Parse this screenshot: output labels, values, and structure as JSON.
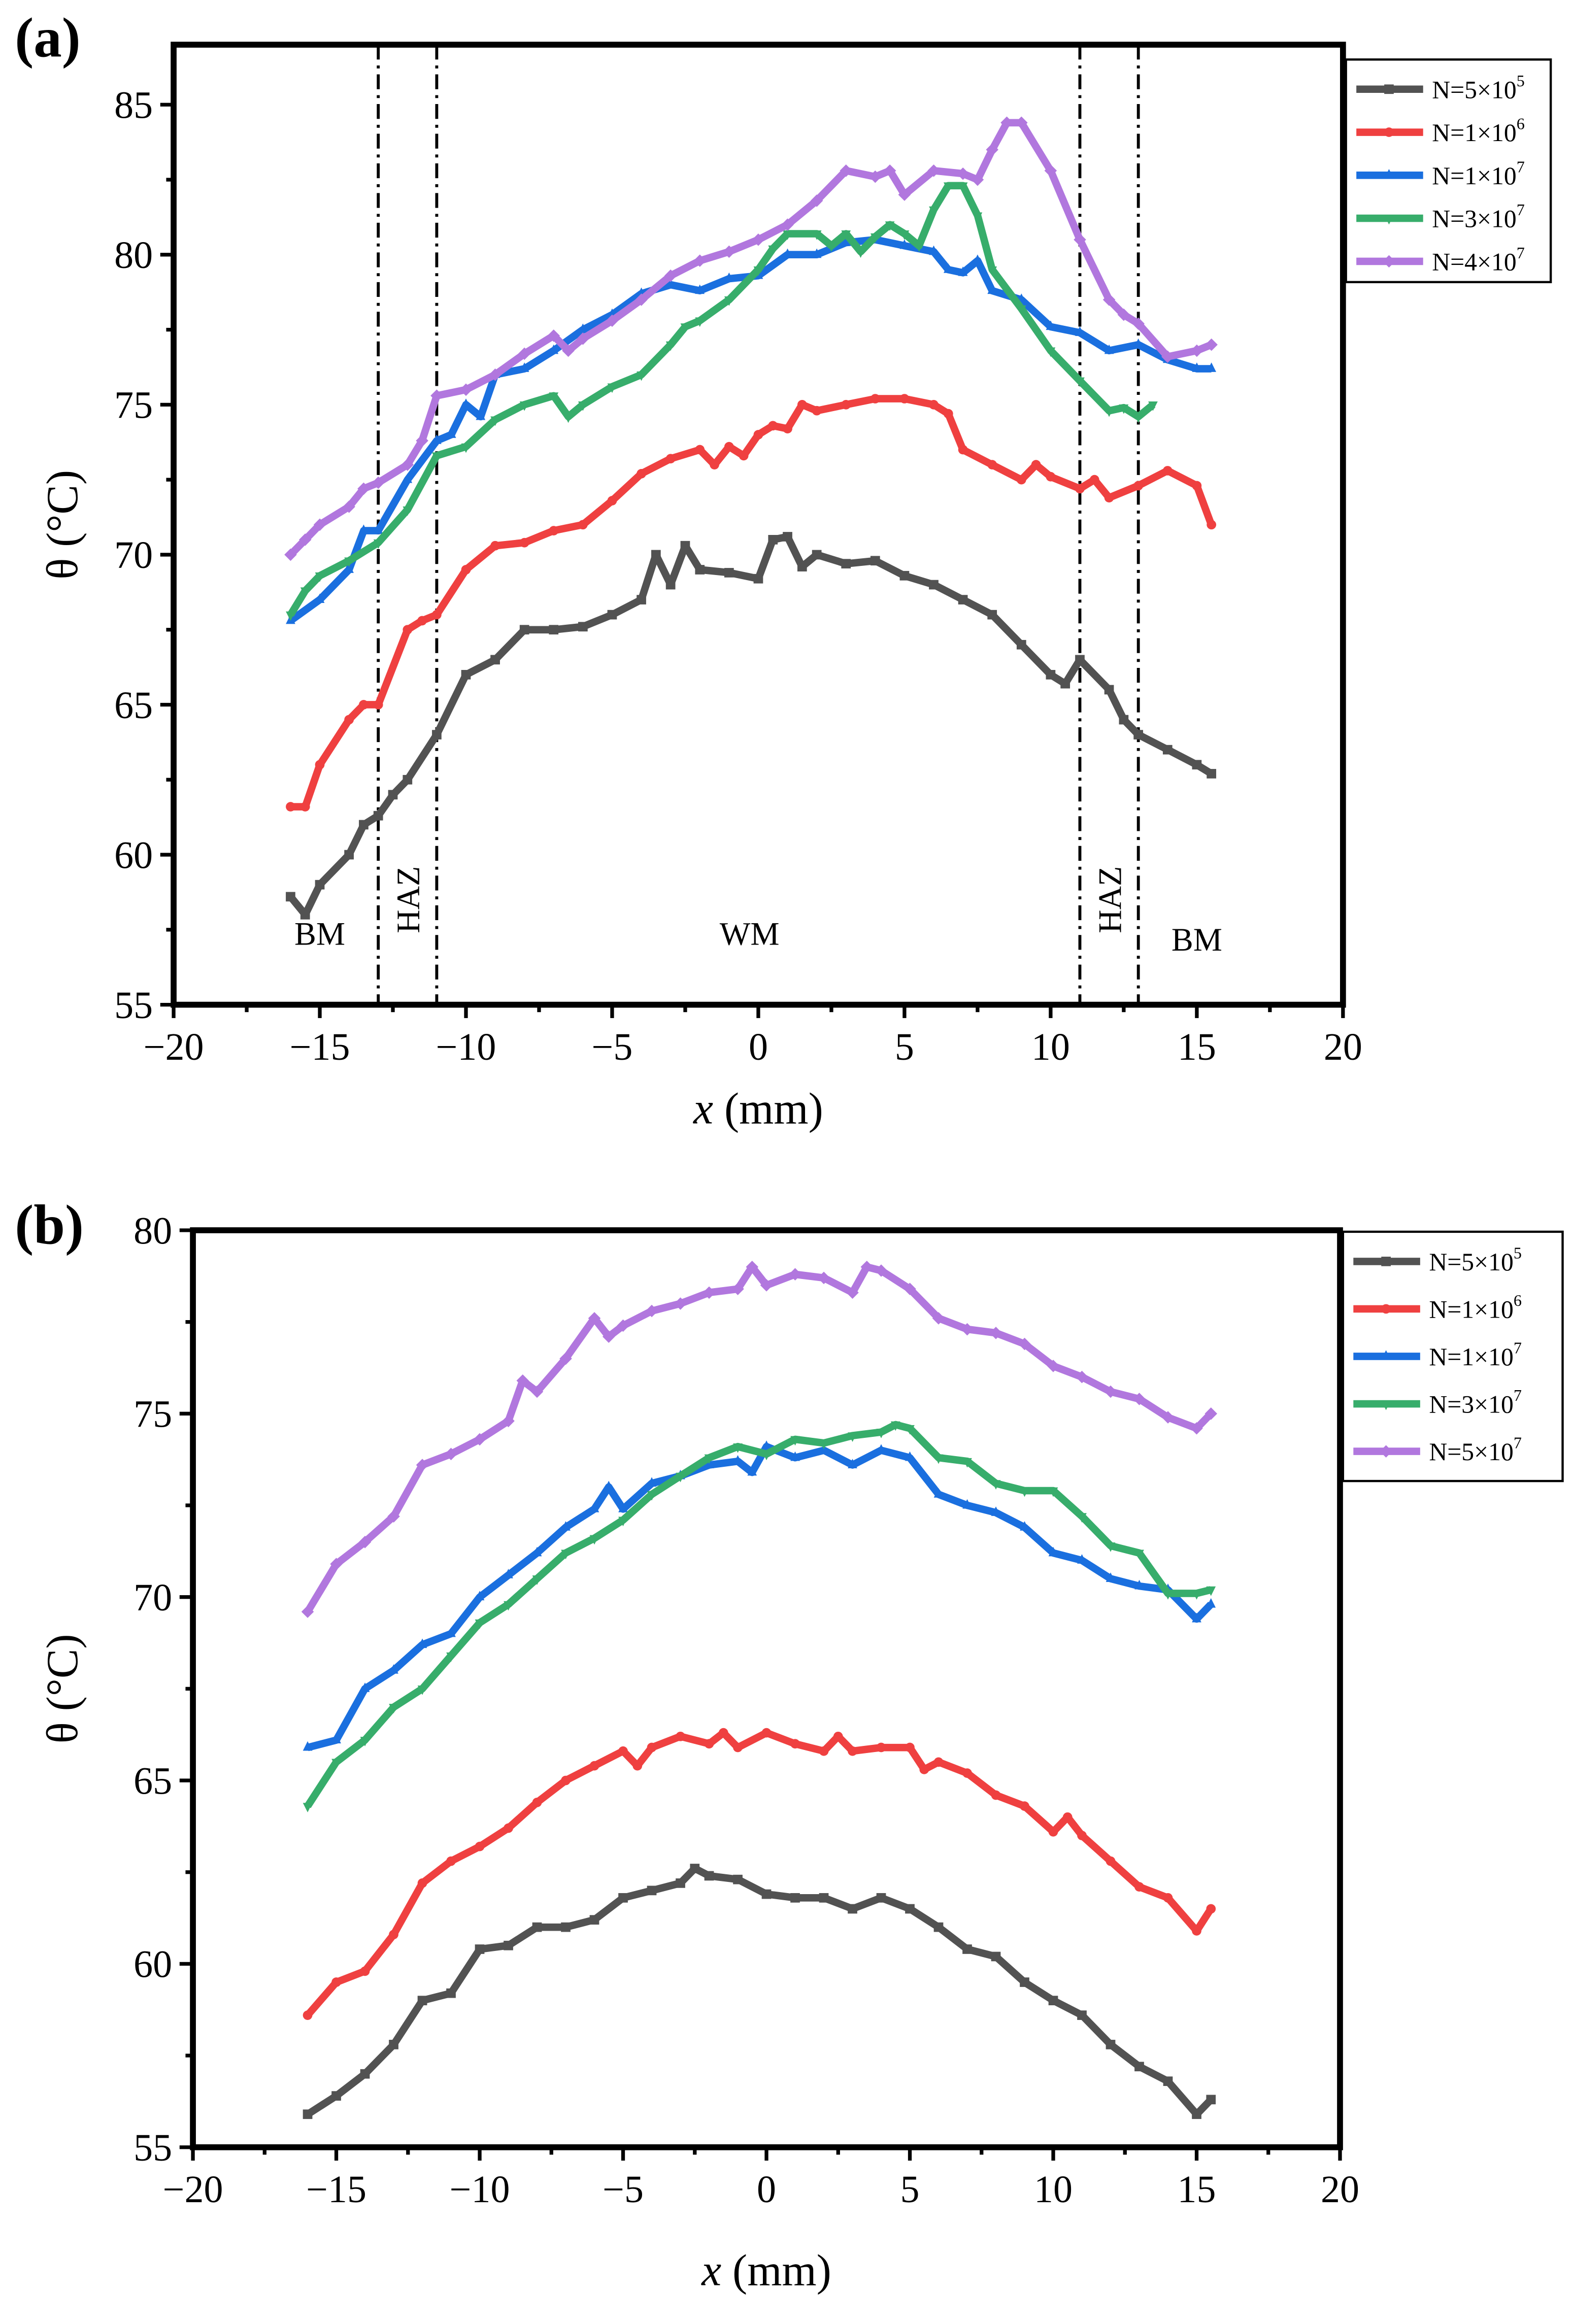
{
  "chart_data": [
    {
      "type": "line",
      "panel_label": "(a)",
      "xlabel_var": "x",
      "xlabel_unit": " (mm)",
      "ylabel": "θ (°C)",
      "xlim": [
        -20,
        20
      ],
      "ylim": [
        55,
        87
      ],
      "xticks": [
        -20,
        -15,
        -10,
        -5,
        0,
        5,
        10,
        15,
        20
      ],
      "yticks": [
        55,
        60,
        65,
        70,
        75,
        80,
        85
      ],
      "xtick_labels": [
        "−20",
        "−15",
        "−10",
        "−5",
        "0",
        "5",
        "10",
        "15",
        "20"
      ],
      "ytick_labels": [
        "55",
        "60",
        "65",
        "70",
        "75",
        "80",
        "85"
      ],
      "legend_position": "outside-top-right",
      "zone_boundaries": [
        -13,
        -11,
        11,
        13
      ],
      "annotations": [
        {
          "text": "BM",
          "x": -15,
          "y": 57,
          "rotated": false
        },
        {
          "text": "HAZ",
          "x": -12,
          "y": 58.5,
          "rotated": true
        },
        {
          "text": "WM",
          "x": -0.3,
          "y": 57,
          "rotated": false
        },
        {
          "text": "HAZ",
          "x": 12,
          "y": 58.5,
          "rotated": true
        },
        {
          "text": "BM",
          "x": 15,
          "y": 56.8,
          "rotated": false
        }
      ],
      "series": [
        {
          "name": "N=5×10^5",
          "label_base": "N=5×10",
          "label_exp": "5",
          "color": "#525252",
          "marker": "square",
          "x": [
            -16,
            -15.5,
            -15,
            -14,
            -13.5,
            -13,
            -12.5,
            -12,
            -11,
            -10,
            -9,
            -8,
            -7,
            -6,
            -5,
            -4,
            -3.5,
            -3,
            -2.5,
            -2,
            -1,
            0,
            0.5,
            1,
            1.5,
            2,
            3,
            4,
            5,
            6,
            7,
            8,
            9,
            10,
            10.5,
            11,
            12,
            12.5,
            13,
            14,
            15,
            15.5
          ],
          "y": [
            58.6,
            58,
            59,
            60,
            61,
            61.3,
            62,
            62.5,
            64,
            66,
            66.5,
            67.5,
            67.5,
            67.6,
            68,
            68.5,
            70,
            69,
            70.3,
            69.5,
            69.4,
            69.2,
            70.5,
            70.6,
            69.6,
            70,
            69.7,
            69.8,
            69.3,
            69,
            68.5,
            68,
            67,
            66,
            65.7,
            66.5,
            65.5,
            64.5,
            64,
            63.5,
            63,
            62.7
          ]
        },
        {
          "name": "N=1×10^6",
          "label_base": "N=1×10",
          "label_exp": "6",
          "color": "#ef4040",
          "marker": "circle",
          "x": [
            -16,
            -15.5,
            -15,
            -14,
            -13.5,
            -13,
            -12,
            -11.5,
            -11,
            -10,
            -9,
            -8,
            -7,
            -6,
            -5,
            -4,
            -3,
            -2,
            -1.5,
            -1,
            -0.5,
            0,
            0.5,
            1,
            1.5,
            2,
            3,
            4,
            5,
            6,
            6.5,
            7,
            8,
            9,
            9.5,
            10,
            11,
            11.5,
            12,
            13,
            14,
            15,
            15.5
          ],
          "y": [
            61.6,
            61.6,
            63,
            64.5,
            65,
            65,
            67.5,
            67.8,
            68,
            69.5,
            70.3,
            70.4,
            70.8,
            71,
            71.8,
            72.7,
            73.2,
            73.5,
            73,
            73.6,
            73.3,
            74,
            74.3,
            74.2,
            75,
            74.8,
            75,
            75.2,
            75.2,
            75,
            74.7,
            73.5,
            73,
            72.5,
            73,
            72.6,
            72.2,
            72.5,
            71.9,
            72.3,
            72.8,
            72.3,
            71
          ]
        },
        {
          "name": "N=1×10^7",
          "label_base": "N=1×10",
          "label_exp": "7",
          "color": "#1a6fdf",
          "marker": "triangle-up",
          "x": [
            -16,
            -15,
            -14,
            -13.5,
            -13,
            -12,
            -11,
            -10.5,
            -10,
            -9.5,
            -9,
            -8,
            -7,
            -6,
            -5,
            -4,
            -3,
            -2,
            -1,
            0,
            1,
            2,
            3,
            4,
            5,
            6,
            6.5,
            7,
            7.5,
            8,
            9,
            10,
            11,
            12,
            13,
            14,
            15,
            15.5
          ],
          "y": [
            67.8,
            68.5,
            69.5,
            70.8,
            70.8,
            72.5,
            73.8,
            74,
            75,
            74.6,
            76,
            76.2,
            76.8,
            77.5,
            78,
            78.7,
            79,
            78.8,
            79.2,
            79.3,
            80,
            80,
            80.4,
            80.5,
            80.3,
            80.1,
            79.5,
            79.4,
            79.8,
            78.8,
            78.5,
            77.6,
            77.4,
            76.8,
            77,
            76.5,
            76.2,
            76.2
          ]
        },
        {
          "name": "N=3×10^7",
          "label_base": "N=3×10",
          "label_exp": "7",
          "color": "#37ad6b",
          "marker": "triangle-down",
          "x": [
            -16,
            -15.5,
            -15,
            -14,
            -13,
            -12,
            -11,
            -10,
            -9,
            -8,
            -7,
            -6.5,
            -6,
            -5,
            -4,
            -3,
            -2.5,
            -2,
            -1,
            0,
            0.5,
            1,
            2,
            2.5,
            3,
            3.5,
            4,
            4.5,
            5,
            5.5,
            6,
            6.5,
            7,
            7.5,
            8,
            9,
            10,
            11,
            12,
            12.5,
            13,
            13.5
          ],
          "y": [
            68,
            68.8,
            69.3,
            69.8,
            70.4,
            71.5,
            73.3,
            73.6,
            74.5,
            75,
            75.3,
            74.6,
            75,
            75.6,
            76,
            77,
            77.6,
            77.8,
            78.5,
            79.5,
            80.2,
            80.7,
            80.7,
            80.3,
            80.7,
            80.1,
            80.6,
            81,
            80.7,
            80.3,
            81.5,
            82.3,
            82.3,
            81.3,
            79.5,
            78.2,
            76.8,
            75.8,
            74.8,
            74.9,
            74.6,
            75
          ]
        },
        {
          "name": "N=4×10^7",
          "label_base": "N=4×10",
          "label_exp": "7",
          "color": "#b177de",
          "marker": "diamond",
          "x": [
            -16,
            -15.5,
            -15,
            -14,
            -13.5,
            -13,
            -12,
            -11.5,
            -11,
            -10,
            -9,
            -8,
            -7,
            -6.5,
            -6,
            -5,
            -4,
            -3,
            -2,
            -1,
            0,
            1,
            2,
            3,
            4,
            4.5,
            5,
            6,
            7,
            7.5,
            8,
            8.5,
            9,
            10,
            11,
            12,
            12.5,
            13,
            14,
            15,
            15.5
          ],
          "y": [
            70,
            70.5,
            71,
            71.6,
            72.2,
            72.4,
            73,
            73.8,
            75.3,
            75.5,
            76,
            76.7,
            77.3,
            76.8,
            77.2,
            77.8,
            78.5,
            79.3,
            79.8,
            80.1,
            80.5,
            81,
            81.8,
            82.8,
            82.6,
            82.8,
            82,
            82.8,
            82.7,
            82.5,
            83.5,
            84.4,
            84.4,
            82.8,
            80.5,
            78.5,
            78,
            77.7,
            76.6,
            76.8,
            77
          ]
        }
      ]
    },
    {
      "type": "line",
      "panel_label": "(b)",
      "xlabel_var": "x",
      "xlabel_unit": " (mm)",
      "ylabel": "θ (°C)",
      "xlim": [
        -20,
        20
      ],
      "ylim": [
        55,
        80
      ],
      "xticks": [
        -20,
        -15,
        -10,
        -5,
        0,
        5,
        10,
        15,
        20
      ],
      "yticks": [
        55,
        60,
        65,
        70,
        75,
        80
      ],
      "xtick_labels": [
        "−20",
        "−15",
        "−10",
        "−5",
        "0",
        "5",
        "10",
        "15",
        "20"
      ],
      "ytick_labels": [
        "55",
        "60",
        "65",
        "70",
        "75",
        "80"
      ],
      "legend_position": "outside-top-right",
      "series": [
        {
          "name": "N=5×10^5",
          "label_base": "N=5×10",
          "label_exp": "5",
          "color": "#525252",
          "marker": "square",
          "x": [
            -16,
            -15,
            -14,
            -13,
            -12,
            -11,
            -10,
            -9,
            -8,
            -7,
            -6,
            -5,
            -4,
            -3,
            -2.5,
            -2,
            -1,
            0,
            1,
            2,
            3,
            4,
            5,
            6,
            7,
            8,
            9,
            10,
            11,
            12,
            13,
            14,
            15,
            15.5
          ],
          "y": [
            55.9,
            56.4,
            57,
            57.8,
            59,
            59.2,
            60.4,
            60.5,
            61,
            61,
            61.2,
            61.8,
            62,
            62.2,
            62.6,
            62.4,
            62.3,
            61.9,
            61.8,
            61.8,
            61.5,
            61.8,
            61.5,
            61,
            60.4,
            60.2,
            59.5,
            59,
            58.6,
            57.8,
            57.2,
            56.8,
            55.9,
            56.3
          ]
        },
        {
          "name": "N=1×10^6",
          "label_base": "N=1×10",
          "label_exp": "6",
          "color": "#ef4040",
          "marker": "circle",
          "x": [
            -16,
            -15,
            -14,
            -13,
            -12,
            -11,
            -10,
            -9,
            -8,
            -7,
            -6,
            -5,
            -4.5,
            -4,
            -3,
            -2,
            -1.5,
            -1,
            0,
            1,
            2,
            2.5,
            3,
            4,
            5,
            5.5,
            6,
            7,
            8,
            9,
            10,
            10.5,
            11,
            12,
            13,
            14,
            15,
            15.5
          ],
          "y": [
            58.6,
            59.5,
            59.8,
            60.8,
            62.2,
            62.8,
            63.2,
            63.7,
            64.4,
            65,
            65.4,
            65.8,
            65.4,
            65.9,
            66.2,
            66,
            66.3,
            65.9,
            66.3,
            66,
            65.8,
            66.2,
            65.8,
            65.9,
            65.9,
            65.3,
            65.5,
            65.2,
            64.6,
            64.3,
            63.6,
            64,
            63.5,
            62.8,
            62.1,
            61.8,
            60.9,
            61.5
          ]
        },
        {
          "name": "N=1×10^7",
          "label_base": "N=1×10",
          "label_exp": "7",
          "color": "#1a6fdf",
          "marker": "triangle-up",
          "x": [
            -16,
            -15,
            -14,
            -13,
            -12,
            -11,
            -10,
            -9,
            -8,
            -7,
            -6,
            -5.5,
            -5,
            -4,
            -3,
            -2,
            -1,
            -0.5,
            0,
            1,
            2,
            3,
            4,
            5,
            6,
            7,
            8,
            9,
            10,
            11,
            12,
            13,
            14,
            15,
            15.5
          ],
          "y": [
            65.9,
            66.1,
            67.5,
            68,
            68.7,
            69,
            70,
            70.6,
            71.2,
            71.9,
            72.4,
            73,
            72.4,
            73.1,
            73.3,
            73.6,
            73.7,
            73.4,
            74.1,
            73.8,
            74,
            73.6,
            74,
            73.8,
            72.8,
            72.5,
            72.3,
            71.9,
            71.2,
            71,
            70.5,
            70.3,
            70.2,
            69.4,
            69.8
          ]
        },
        {
          "name": "N=3×10^7",
          "label_base": "N=3×10",
          "label_exp": "7",
          "color": "#37ad6b",
          "marker": "triangle-down",
          "x": [
            -16,
            -15,
            -14,
            -13,
            -12,
            -11,
            -10,
            -9,
            -8,
            -7,
            -6,
            -5,
            -4,
            -3,
            -2,
            -1,
            0,
            1,
            2,
            3,
            4,
            4.5,
            5,
            6,
            7,
            8,
            9,
            10,
            11,
            12,
            13,
            14,
            15,
            15.5
          ],
          "y": [
            64.3,
            65.5,
            66.1,
            67,
            67.5,
            68.4,
            69.3,
            69.8,
            70.5,
            71.2,
            71.6,
            72.1,
            72.8,
            73.3,
            73.8,
            74.1,
            73.9,
            74.3,
            74.2,
            74.4,
            74.5,
            74.7,
            74.6,
            73.8,
            73.7,
            73.1,
            72.9,
            72.9,
            72.2,
            71.4,
            71.2,
            70.1,
            70.1,
            70.2
          ]
        },
        {
          "name": "N=5×10^7",
          "label_base": "N=5×10",
          "label_exp": "7",
          "color": "#b177de",
          "marker": "diamond",
          "x": [
            -16,
            -15,
            -14,
            -13,
            -12,
            -11,
            -10,
            -9,
            -8.5,
            -8,
            -7,
            -6,
            -5.5,
            -5,
            -4,
            -3,
            -2,
            -1,
            -0.5,
            0,
            1,
            2,
            3,
            3.5,
            4,
            5,
            6,
            7,
            8,
            9,
            10,
            11,
            12,
            13,
            14,
            15,
            15.5
          ],
          "y": [
            69.6,
            70.9,
            71.5,
            72.2,
            73.6,
            73.9,
            74.3,
            74.8,
            75.9,
            75.6,
            76.5,
            77.6,
            77.1,
            77.4,
            77.8,
            78,
            78.3,
            78.4,
            79,
            78.5,
            78.8,
            78.7,
            78.3,
            79,
            78.9,
            78.4,
            77.6,
            77.3,
            77.2,
            76.9,
            76.3,
            76,
            75.6,
            75.4,
            74.9,
            74.6,
            75
          ]
        }
      ]
    }
  ]
}
